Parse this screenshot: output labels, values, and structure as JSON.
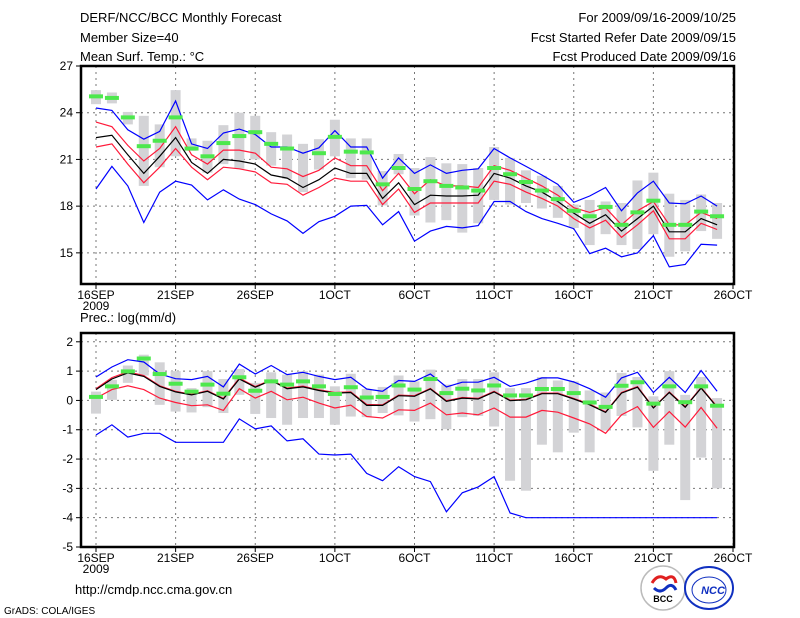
{
  "header": {
    "title": "DERF/NCC/BCC Monthly Forecast",
    "member_size": "Member Size=40",
    "variable": "Mean Surf. Temp.: °C",
    "period": "For 2009/09/16-2009/10/25",
    "started": "Fcst Started Refer Date 2009/09/15",
    "produced": "Fcst Produced Date 2009/09/16"
  },
  "footer": {
    "url": "http://cmdp.ncc.cma.gov.cn",
    "credit": "GrADS: COLA/IGES",
    "logo_bcc": "BCC",
    "logo_ncc": "NCC"
  },
  "colors": {
    "mean": "#000000",
    "red": "#ff1a3a",
    "blue": "#0000ff",
    "obs": "#4de84d",
    "box": "#d3d3d6",
    "grid": "#777777"
  },
  "chart_data": [
    {
      "type": "line",
      "title": "Mean Surf. Temp.: °C",
      "xlabel": "",
      "ylabel": "",
      "x_start": "16SEP 2009",
      "days": 40,
      "xticks": [
        {
          "day": 0,
          "label": "16SEP",
          "sub": "2009"
        },
        {
          "day": 5,
          "label": "21SEP"
        },
        {
          "day": 10,
          "label": "26SEP"
        },
        {
          "day": 15,
          "label": "1OCT"
        },
        {
          "day": 20,
          "label": "6OCT"
        },
        {
          "day": 25,
          "label": "11OCT"
        },
        {
          "day": 30,
          "label": "16OCT"
        },
        {
          "day": 35,
          "label": "21OCT"
        },
        {
          "day": 40,
          "label": "26OCT"
        }
      ],
      "yticks": [
        15,
        18,
        21,
        24,
        27
      ],
      "ylim": [
        13,
        27
      ],
      "grid": true,
      "series": [
        {
          "name": "ensemble-mean",
          "color": "mean",
          "values": [
            22.4,
            22.55,
            21.3,
            20.1,
            21.2,
            22.4,
            20.8,
            20.1,
            21.0,
            20.9,
            20.7,
            20.0,
            19.8,
            19.2,
            19.7,
            20.45,
            20.1,
            20.1,
            18.5,
            19.5,
            18.1,
            18.7,
            18.65,
            18.65,
            18.7,
            20.1,
            19.8,
            19.3,
            18.9,
            18.3,
            17.55,
            16.9,
            17.45,
            16.4,
            17.2,
            18.0,
            16.35,
            16.35,
            17.2,
            16.8
          ]
        },
        {
          "name": "upper-red",
          "color": "red",
          "values": [
            23.4,
            23.1,
            21.9,
            20.9,
            21.7,
            23.1,
            21.3,
            20.7,
            21.6,
            21.6,
            21.4,
            20.5,
            20.4,
            19.9,
            20.3,
            21.1,
            20.6,
            20.6,
            19.0,
            20.1,
            18.8,
            19.7,
            19.3,
            19.3,
            19.2,
            20.6,
            20.3,
            19.8,
            19.3,
            18.7,
            17.9,
            17.6,
            17.9,
            16.8,
            17.7,
            18.3,
            16.8,
            16.8,
            17.6,
            17.2
          ]
        },
        {
          "name": "lower-red",
          "color": "red",
          "values": [
            21.8,
            22.0,
            20.7,
            19.5,
            20.5,
            21.7,
            20.5,
            19.7,
            20.5,
            20.4,
            20.2,
            19.5,
            19.4,
            18.7,
            19.2,
            19.8,
            19.6,
            19.6,
            18.1,
            19.1,
            17.6,
            18.2,
            18.2,
            18.2,
            18.2,
            19.6,
            19.4,
            18.9,
            18.5,
            18.0,
            17.2,
            16.6,
            17.1,
            16.0,
            16.8,
            17.7,
            15.9,
            15.9,
            16.9,
            16.5
          ]
        },
        {
          "name": "upper-blue",
          "color": "blue",
          "values": [
            24.3,
            24.15,
            22.9,
            22.3,
            22.8,
            24.75,
            22.0,
            21.7,
            22.7,
            22.95,
            22.6,
            21.8,
            21.8,
            21.4,
            21.75,
            22.85,
            21.8,
            21.8,
            19.8,
            21.1,
            20.1,
            20.65,
            20.1,
            20.3,
            20.4,
            21.7,
            21.1,
            20.55,
            20.0,
            19.4,
            18.25,
            18.65,
            19.2,
            17.7,
            18.85,
            19.6,
            18.2,
            18.15,
            18.65,
            18.0
          ]
        },
        {
          "name": "lower-blue",
          "color": "blue",
          "values": [
            19.1,
            20.55,
            19.3,
            16.95,
            18.9,
            19.6,
            19.35,
            18.4,
            19.05,
            18.45,
            18.1,
            17.5,
            17.05,
            16.25,
            17.0,
            17.35,
            18.0,
            18.05,
            16.8,
            17.65,
            15.75,
            16.4,
            16.7,
            16.6,
            16.75,
            18.3,
            18.3,
            17.65,
            17.2,
            16.9,
            16.55,
            14.95,
            15.3,
            14.75,
            15.0,
            16.1,
            14.1,
            14.25,
            15.55,
            15.5
          ]
        }
      ],
      "observed": [
        25.05,
        24.95,
        23.7,
        21.85,
        22.2,
        23.7,
        21.7,
        21.2,
        22.05,
        22.5,
        22.75,
        22.0,
        21.7,
        null,
        21.4,
        22.45,
        21.5,
        21.45,
        19.4,
        20.45,
        19.1,
        19.6,
        19.3,
        19.2,
        19.0,
        20.45,
        20.05,
        19.55,
        19.0,
        18.45,
        17.7,
        17.35,
        17.95,
        16.8,
        17.6,
        18.35,
        16.8,
        16.8,
        17.65,
        17.35
      ],
      "range_high": [
        25.45,
        25.3,
        24.05,
        23.8,
        23.25,
        25.45,
        22.35,
        22.2,
        23.2,
        24.0,
        23.8,
        22.75,
        22.6,
        22.0,
        22.3,
        23.55,
        22.35,
        22.35,
        20.25,
        21.35,
        20.45,
        21.15,
        20.75,
        20.7,
        20.45,
        21.8,
        21.1,
        20.3,
        19.95,
        19.3,
        18.1,
        18.4,
        18.3,
        18.2,
        19.65,
        20.15,
        18.8,
        18.4,
        18.75,
        18.2
      ],
      "range_low": [
        24.55,
        24.6,
        23.25,
        19.3,
        20.5,
        21.2,
        21.55,
        20.15,
        20.7,
        20.4,
        21.0,
        20.6,
        19.75,
        18.9,
        20.35,
        21.2,
        19.8,
        19.7,
        18.05,
        20.05,
        17.4,
        16.95,
        17.1,
        16.3,
        16.9,
        18.4,
        18.1,
        18.2,
        17.85,
        17.25,
        16.6,
        15.5,
        16.2,
        15.5,
        15.25,
        16.2,
        14.75,
        15.1,
        16.4,
        15.9
      ]
    },
    {
      "type": "line",
      "title": "Prec.: log(mm/d)",
      "xlabel": "",
      "ylabel": "",
      "days": 40,
      "xticks": [
        {
          "day": 0,
          "label": "16SEP",
          "sub": "2009"
        },
        {
          "day": 5,
          "label": "21SEP"
        },
        {
          "day": 10,
          "label": "26SEP"
        },
        {
          "day": 15,
          "label": "1OCT"
        },
        {
          "day": 20,
          "label": "6OCT"
        },
        {
          "day": 25,
          "label": "11OCT"
        },
        {
          "day": 30,
          "label": "16OCT"
        },
        {
          "day": 35,
          "label": "21OCT"
        },
        {
          "day": 40,
          "label": "26OCT"
        }
      ],
      "yticks": [
        -5,
        -4,
        -3,
        -2,
        -1,
        0,
        1,
        2
      ],
      "ylim": [
        -5,
        2.3
      ],
      "grid": true,
      "series": [
        {
          "name": "lower-red",
          "color": "red",
          "values": [
            0.08,
            0.37,
            0.5,
            0.37,
            0.08,
            -0.07,
            -0.18,
            -0.15,
            -0.34,
            0.4,
            0.08,
            0.31,
            0.02,
            0.11,
            -0.09,
            -0.26,
            -0.16,
            -0.55,
            -0.6,
            -0.32,
            -0.34,
            -0.09,
            -0.49,
            -0.43,
            -0.49,
            -0.26,
            -0.57,
            -0.57,
            -0.34,
            -0.4,
            -0.6,
            -0.8,
            -1.12,
            -0.49,
            -0.21,
            -0.92,
            -0.38,
            -0.91,
            -0.24,
            -0.95
          ]
        },
        {
          "name": "upper-red",
          "color": "red",
          "values": [
            0.4,
            0.78,
            0.98,
            0.85,
            0.5,
            0.31,
            0.21,
            0.33,
            0.07,
            0.76,
            0.47,
            0.7,
            0.42,
            0.49,
            0.36,
            0.27,
            0.29,
            -0.14,
            -0.15,
            0.18,
            0.16,
            0.41,
            -0.01,
            0.1,
            0.07,
            0.31,
            0.01,
            0.04,
            0.25,
            0.25,
            0.07,
            -0.13,
            -0.39,
            0.27,
            0.47,
            -0.24,
            0.29,
            -0.21,
            0.44,
            -0.21
          ]
        },
        {
          "name": "ensemble-mean",
          "color": "mean",
          "values": [
            0.37,
            0.73,
            0.94,
            0.82,
            0.48,
            0.29,
            0.19,
            0.31,
            0.05,
            0.73,
            0.45,
            0.68,
            0.4,
            0.46,
            0.34,
            0.25,
            0.27,
            -0.17,
            -0.17,
            0.16,
            0.14,
            0.39,
            -0.03,
            0.08,
            0.05,
            0.29,
            -0.01,
            0.02,
            0.23,
            0.23,
            0.05,
            -0.15,
            -0.41,
            0.25,
            0.45,
            -0.26,
            0.27,
            -0.23,
            0.42,
            -0.23
          ]
        },
        {
          "name": "upper-blue",
          "color": "blue",
          "values": [
            0.8,
            1.14,
            1.39,
            1.31,
            0.9,
            0.74,
            0.71,
            0.82,
            0.46,
            1.24,
            0.9,
            1.19,
            0.88,
            0.96,
            0.82,
            0.71,
            0.79,
            0.39,
            0.31,
            0.68,
            0.65,
            0.9,
            0.46,
            0.62,
            0.62,
            0.79,
            0.48,
            0.59,
            0.77,
            0.77,
            0.63,
            0.4,
            0.11,
            0.77,
            0.96,
            0.27,
            0.79,
            0.27,
            1.02,
            0.31
          ]
        },
        {
          "name": "lower-blue",
          "color": "blue",
          "values": [
            -1.18,
            -0.83,
            -1.25,
            -1.12,
            -1.12,
            -1.43,
            -1.43,
            -1.43,
            -1.43,
            -0.63,
            -0.97,
            -0.87,
            -1.38,
            -1.31,
            -1.83,
            -1.86,
            -1.83,
            -2.49,
            -2.74,
            -2.26,
            -2.6,
            -2.77,
            -3.8,
            -3.15,
            -2.95,
            -2.6,
            -3.84,
            -4.0,
            -4.0,
            -4.0,
            -4.0,
            -4.0,
            -4.0,
            -4.0,
            -4.0,
            -4.0,
            -4.0,
            -4.0,
            -4.0,
            -4.0
          ]
        }
      ],
      "observed": [
        0.12,
        0.48,
        0.99,
        1.43,
        0.9,
        0.57,
        0.3,
        0.54,
        0.23,
        0.79,
        0.33,
        0.65,
        0.54,
        0.65,
        0.48,
        0.22,
        0.45,
        0.1,
        0.12,
        0.51,
        0.37,
        0.73,
        0.25,
        0.4,
        0.34,
        0.51,
        0.17,
        0.17,
        0.39,
        0.39,
        0.25,
        -0.07,
        -0.22,
        0.5,
        0.62,
        -0.11,
        0.48,
        -0.06,
        0.48,
        -0.18
      ],
      "range_high": [
        0.3,
        0.7,
        1.19,
        1.56,
        1.3,
        1.0,
        0.42,
        1.0,
        0.73,
        1.07,
        0.6,
        0.96,
        0.88,
        1.0,
        0.88,
        0.48,
        0.91,
        0.39,
        0.46,
        0.85,
        0.65,
        1.05,
        0.54,
        0.73,
        0.73,
        0.96,
        0.42,
        0.42,
        0.8,
        0.68,
        0.65,
        0.34,
        0.27,
        0.94,
        0.8,
        0.14,
        1.0,
        0.19,
        0.8,
        0.08
      ],
      "range_low": [
        -0.45,
        0.02,
        0.6,
        0.85,
        -0.15,
        -0.38,
        -0.41,
        -0.23,
        -0.43,
        0.19,
        -0.46,
        -0.6,
        -0.83,
        -0.6,
        -0.6,
        -0.83,
        -0.55,
        -0.57,
        -0.43,
        -0.51,
        -0.72,
        -0.64,
        -0.98,
        -0.57,
        -0.53,
        -0.89,
        -2.74,
        -3.08,
        -1.51,
        -1.77,
        -1.1,
        -1.77,
        -1.03,
        -0.53,
        -0.92,
        -2.4,
        -1.51,
        -3.4,
        -1.95,
        -3.0
      ]
    }
  ]
}
